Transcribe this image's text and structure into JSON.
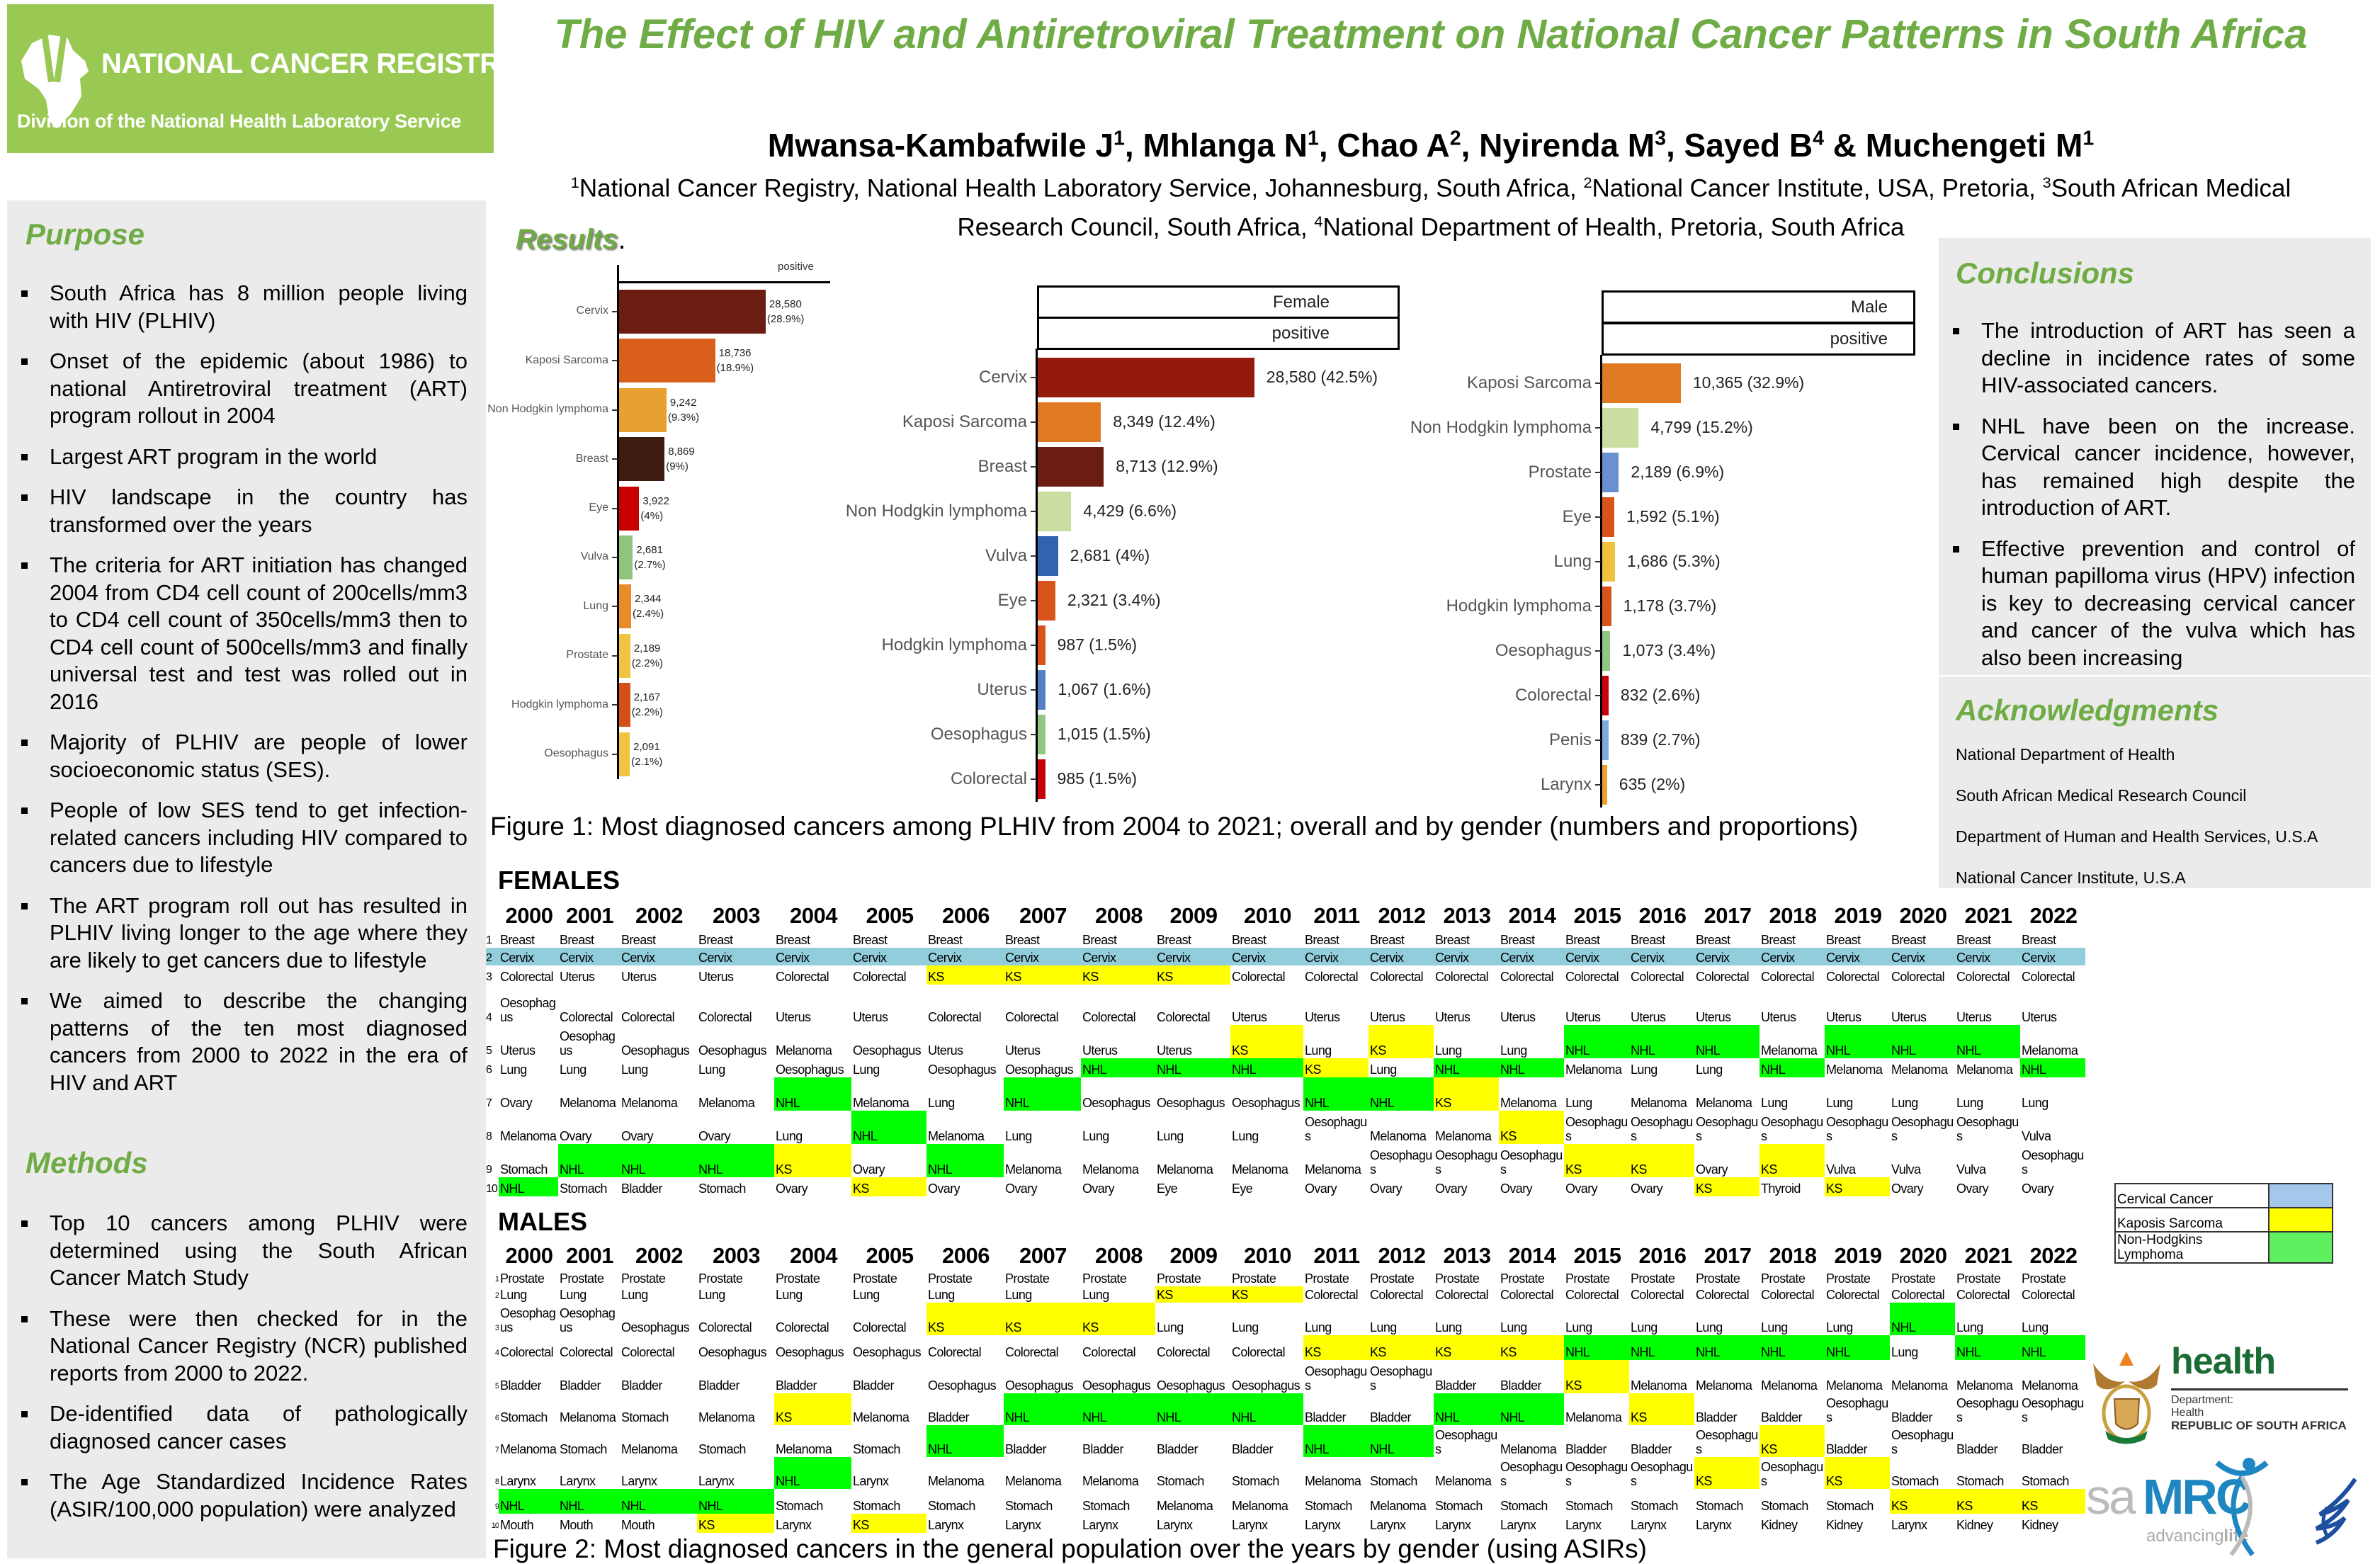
{
  "logo": {
    "name": "NATIONAL CANCER REGISTRY",
    "subtitle": "Division of the National Health Laboratory Service",
    "color": "#99c952"
  },
  "title": "The Effect of HIV and Antiretroviral Treatment on National Cancer Patterns in South Africa",
  "authors": [
    {
      "name": "Mwansa-Kambafwile J",
      "sup": "1",
      "sep": ", "
    },
    {
      "name": "Mhlanga N",
      "sup": "1",
      "sep": ", "
    },
    {
      "name": "Chao A",
      "sup": "2",
      "sep": ", "
    },
    {
      "name": "Nyirenda M",
      "sup": "3",
      "sep": ", "
    },
    {
      "name": "Sayed B",
      "sup": "4",
      "sep": " & "
    },
    {
      "name": "Muchengeti M",
      "sup": "1",
      "sep": ""
    }
  ],
  "affiliations": [
    {
      "sup": "1",
      "text": "National Cancer Registry, National Health Laboratory Service, Johannesburg, South Africa, "
    },
    {
      "sup": "2",
      "text": "National Cancer Institute, USA, Pretoria, "
    },
    {
      "sup": "3",
      "text": "South African Medical Research Council, South Africa, "
    },
    {
      "sup": "4",
      "text": "National Department of Health, Pretoria, South Africa"
    }
  ],
  "purpose": {
    "heading": "Purpose",
    "bullets": [
      "South Africa has 8 million people living with HIV (PLHIV)",
      "Onset of the epidemic (about 1986) to national Antiretroviral treatment (ART) program rollout in 2004",
      "Largest ART program in the world",
      "HIV landscape in the country has transformed over the years",
      "The criteria for ART initiation has changed 2004 from CD4 cell count of 200cells/mm3 to CD4 cell count of 350cells/mm3  then to CD4 cell count of 500cells/mm3 and finally universal test and test was rolled out in 2016",
      "Majority of PLHIV are people of lower socioeconomic status (SES).",
      "People of low SES tend to get infection-related cancers including HIV compared to cancers due to lifestyle",
      "The ART program roll out has resulted in PLHIV living longer to the age where they are likely to get cancers due to lifestyle",
      "We aimed to describe the changing patterns of the ten most diagnosed cancers from 2000 to 2022 in the era of HIV and ART"
    ]
  },
  "methods": {
    "heading": "Methods",
    "bullets": [
      "Top 10 cancers among PLHIV were determined using the South African Cancer Match Study",
      "These were then checked for in the National Cancer Registry (NCR) published reports from 2000 to 2022.",
      "De-identified data of pathologically diagnosed cancer cases",
      "The Age Standardized Incidence Rates (ASIR/100,000 population) were analyzed"
    ]
  },
  "results": {
    "heading": "Results",
    "dot": "."
  },
  "conclusions": {
    "heading": "Conclusions",
    "bullets": [
      "The introduction of ART has seen a decline in incidence rates of some HIV-associated cancers.",
      "NHL have been on the increase. Cervical cancer incidence, however, has remained high despite the introduction of ART.",
      "Effective prevention and control of human papilloma virus (HPV) infection is key to decreasing cervical cancer and cancer of the vulva which has also been increasing"
    ]
  },
  "acknowledgments": {
    "heading": "Acknowledgments",
    "items": [
      "National Department of Health",
      "South African Medical Research Council",
      "Department of Human and Health Services, U.S.A",
      "National Cancer Institute, U.S.A"
    ]
  },
  "figure1_caption": "Figure 1: Most diagnosed cancers among PLHIV from 2004 to 2021; overall and by gender (numbers  and proportions)",
  "figure2_caption": "Figure 2: Most diagnosed cancers in the general population  over the years by gender (using ASIRs)",
  "chart_data": [
    {
      "type": "bar",
      "orientation": "horizontal",
      "strip": [
        "positive"
      ],
      "categories": [
        "Cervix",
        "Kaposi Sarcoma",
        "Non Hodgkin lymphoma",
        "Breast",
        "Eye",
        "Vulva",
        "Lung",
        "Prostate",
        "Hodgkin lymphoma",
        "Oesophagus"
      ],
      "values": [
        28580,
        18736,
        9242,
        8869,
        3922,
        2681,
        2344,
        2189,
        2167,
        2091
      ],
      "counts": [
        "28,580",
        "18,736",
        "9,242",
        "8,869",
        "3,922",
        "2,681",
        "2,344",
        "2,189",
        "2,167",
        "2,091"
      ],
      "percents": [
        "(28.9%)",
        "(18.9%)",
        "(9.3%)",
        "(9%)",
        "(4%)",
        "(2.7%)",
        "(2.4%)",
        "(2.2%)",
        "(2.2%)",
        "(2.1%)"
      ],
      "colors": [
        "#6b1d12",
        "#d95f1a",
        "#e8a030",
        "#3e1a10",
        "#c80000",
        "#90c47e",
        "#e88c2a",
        "#f0c440",
        "#d4501a",
        "#f0c440"
      ]
    },
    {
      "type": "bar",
      "orientation": "horizontal",
      "strip": [
        "Female",
        "positive"
      ],
      "categories": [
        "Cervix",
        "Kaposi Sarcoma",
        "Breast",
        "Non Hodgkin lymphoma",
        "Vulva",
        "Eye",
        "Hodgkin lymphoma",
        "Uterus",
        "Oesophagus",
        "Colorectal"
      ],
      "values": [
        28580,
        8349,
        8713,
        4429,
        2681,
        2321,
        987,
        1067,
        1015,
        985
      ],
      "labels": [
        "28,580 (42.5%)",
        "8,349 (12.4%)",
        "8,713 (12.9%)",
        "4,429 (6.6%)",
        "2,681 (4%)",
        "2,321 (3.4%)",
        "987 (1.5%)",
        "1,067 (1.6%)",
        "1,015 (1.5%)",
        "985 (1.5%)"
      ],
      "colors": [
        "#941b0c",
        "#e07a22",
        "#6a1d10",
        "#c9dea0",
        "#3263b0",
        "#d9541a",
        "#d9541a",
        "#5580c8",
        "#92c683",
        "#c8000a"
      ]
    },
    {
      "type": "bar",
      "orientation": "horizontal",
      "strip": [
        "Male",
        "positive"
      ],
      "categories": [
        "Kaposi Sarcoma",
        "Non Hodgkin lymphoma",
        "Prostate",
        "Eye",
        "Lung",
        "Hodgkin lymphoma",
        "Oesophagus",
        "Colorectal",
        "Penis",
        "Larynx"
      ],
      "values": [
        10365,
        4799,
        2189,
        1592,
        1686,
        1178,
        1073,
        832,
        839,
        635
      ],
      "labels": [
        "10,365 (32.9%)",
        "4,799 (15.2%)",
        "2,189 (6.9%)",
        "1,592 (5.1%)",
        "1,686 (5.3%)",
        "1,178 (3.7%)",
        "1,073 (3.4%)",
        "832 (2.6%)",
        "839 (2.7%)",
        "635 (2%)"
      ],
      "colors": [
        "#e07a22",
        "#c9dea0",
        "#6a90d0",
        "#d9541a",
        "#f0c040",
        "#d9541a",
        "#92c683",
        "#c8000a",
        "#7aaae0",
        "#e8a030"
      ]
    }
  ],
  "highlight_colors": {
    "Cervix": "#92cddc",
    "KS": "#ffff00",
    "NHL": "#00ff00"
  },
  "tables": {
    "females": {
      "label": "FEMALES",
      "years": [
        "2000",
        "2001",
        "2002",
        "2003",
        "2004",
        "2005",
        "2006",
        "2007",
        "2008",
        "2009",
        "2010",
        "2011",
        "2012",
        "2013",
        "2014",
        "2015",
        "2016",
        "2017",
        "2018",
        "2019",
        "2020",
        "2021",
        "2022"
      ],
      "ranks": [
        "1",
        "2",
        "3",
        "4",
        "5",
        "6",
        "7",
        "8",
        "9",
        "10"
      ],
      "rows": [
        [
          "Breast",
          "Breast",
          "Breast",
          "Breast",
          "Breast",
          "Breast",
          "Breast",
          "Breast",
          "Breast",
          "Breast",
          "Breast",
          "Breast",
          "Breast",
          "Breast",
          "Breast",
          "Breast",
          "Breast",
          "Breast",
          "Breast",
          "Breast",
          "Breast",
          "Breast",
          "Breast"
        ],
        [
          "Cervix",
          "Cervix",
          "Cervix",
          "Cervix",
          "Cervix",
          "Cervix",
          "Cervix",
          "Cervix",
          "Cervix",
          "Cervix",
          "Cervix",
          "Cervix",
          "Cervix",
          "Cervix",
          "Cervix",
          "Cervix",
          "Cervix",
          "Cervix",
          "Cervix",
          "Cervix",
          "Cervix",
          "Cervix",
          "Cervix"
        ],
        [
          "Colorectal",
          "Uterus",
          "Uterus",
          "Uterus",
          "Colorectal",
          "Colorectal",
          "KS",
          "KS",
          "KS",
          "KS",
          "Colorectal",
          "Colorectal",
          "Colorectal",
          "Colorectal",
          "Colorectal",
          "Colorectal",
          "Colorectal",
          "Colorectal",
          "Colorectal",
          "Colorectal",
          "Colorectal",
          "Colorectal",
          "Colorectal"
        ],
        [
          "Oesophagus",
          "Colorectal",
          "Colorectal",
          "Colorectal",
          "Uterus",
          "Uterus",
          "Colorectal",
          "Colorectal",
          "Colorectal",
          "Colorectal",
          "Uterus",
          "Uterus",
          "Uterus",
          "Uterus",
          "Uterus",
          "Uterus",
          "Uterus",
          "Uterus",
          "Uterus",
          "Uterus",
          "Uterus",
          "Uterus",
          "Uterus"
        ],
        [
          "Uterus",
          "Oesophagus",
          "Oesophagus",
          "Oesophagus",
          "Melanoma",
          "Oesophagus",
          "Uterus",
          "Uterus",
          "Uterus",
          "Uterus",
          "KS",
          "Lung",
          "KS",
          "Lung",
          "Lung",
          "NHL",
          "NHL",
          "NHL",
          "Melanoma",
          "NHL",
          "NHL",
          "NHL",
          "Melanoma"
        ],
        [
          "Lung",
          "Lung",
          "Lung",
          "Lung",
          "Oesophagus",
          "Lung",
          "Oesophagus",
          "Oesophagus",
          "NHL",
          "NHL",
          "NHL",
          "KS",
          "Lung",
          "NHL",
          "NHL",
          "Melanoma",
          "Lung",
          "Lung",
          "NHL",
          "Melanoma",
          "Melanoma",
          "Melanoma",
          "NHL"
        ],
        [
          "Ovary",
          "Melanoma",
          "Melanoma",
          "Melanoma",
          "NHL",
          "Melanoma",
          "Lung",
          "NHL",
          "Oesophagus",
          "Oesophagus",
          "Oesophagus",
          "NHL",
          "NHL",
          "KS",
          "Melanoma",
          "Lung",
          "Melanoma",
          "Melanoma",
          "Lung",
          "Lung",
          "Lung",
          "Lung",
          "Lung"
        ],
        [
          "Melanoma",
          "Ovary",
          "Ovary",
          "Ovary",
          "Lung",
          "NHL",
          "Melanoma",
          "Lung",
          "Lung",
          "Lung",
          "Lung",
          "Oesophagus",
          "Melanoma",
          "Melanoma",
          "KS",
          "Oesophagus",
          "Oesophagus",
          "Oesophagus",
          "Oesophagus",
          "Oesophagus",
          "Oesophagus",
          "Oesophagus",
          "Vulva"
        ],
        [
          "Stomach",
          "NHL",
          "NHL",
          "NHL",
          "KS",
          "Ovary",
          "NHL",
          "Melanoma",
          "Melanoma",
          "Melanoma",
          "Melanoma",
          "Melanoma",
          "Oesophagus",
          "Oesophagus",
          "Oesophagus",
          "KS",
          "KS",
          "Ovary",
          "KS",
          "Vulva",
          "Vulva",
          "Vulva",
          "Oesophagus"
        ],
        [
          "NHL",
          "Stomach",
          "Bladder",
          "Stomach",
          "Ovary",
          "KS",
          "Ovary",
          "Ovary",
          "Ovary",
          "Eye",
          "Eye",
          "Ovary",
          "Ovary",
          "Ovary",
          "Ovary",
          "Ovary",
          "Ovary",
          "KS",
          "Thyroid",
          "KS",
          "Ovary",
          "Ovary",
          "Ovary"
        ]
      ]
    },
    "males": {
      "label": "MALES",
      "years": [
        "2000",
        "2001",
        "2002",
        "2003",
        "2004",
        "2005",
        "2006",
        "2007",
        "2008",
        "2009",
        "2010",
        "2011",
        "2012",
        "2013",
        "2014",
        "2015",
        "2016",
        "2017",
        "2018",
        "2019",
        "2020",
        "2021",
        "2022"
      ],
      "ranks": [
        "1",
        "2",
        "3",
        "4",
        "5",
        "6",
        "7",
        "8",
        "9",
        "10"
      ],
      "rows": [
        [
          "Prostate",
          "Prostate",
          "Prostate",
          "Prostate",
          "Prostate",
          "Prostate",
          "Prostate",
          "Prostate",
          "Prostate",
          "Prostate",
          "Prostate",
          "Prostate",
          "Prostate",
          "Prostate",
          "Prostate",
          "Prostate",
          "Prostate",
          "Prostate",
          "Prostate",
          "Prostate",
          "Prostate",
          "Prostate",
          "Prostate"
        ],
        [
          "Lung",
          "Lung",
          "Lung",
          "Lung",
          "Lung",
          "Lung",
          "Lung",
          "Lung",
          "Lung",
          "KS",
          "KS",
          "Colorectal",
          "Colorectal",
          "Colorectal",
          "Colorectal",
          "Colorectal",
          "Colorectal",
          "Colorectal",
          "Colorectal",
          "Colorectal",
          "Colorectal",
          "Colorectal",
          "Colorectal"
        ],
        [
          "Oesophagus",
          "Oesophagus",
          "Oesophagus",
          "Colorectal",
          "Colorectal",
          "Colorectal",
          "KS",
          "KS",
          "KS",
          "Lung",
          "Lung",
          "Lung",
          "Lung",
          "Lung",
          "Lung",
          "Lung",
          "Lung",
          "Lung",
          "Lung",
          "Lung",
          "NHL",
          "Lung",
          "Lung"
        ],
        [
          "Colorectal",
          "Colorectal",
          "Colorectal",
          "Oesophagus",
          "Oesophagus",
          "Oesophagus",
          "Colorectal",
          "Colorectal",
          "Colorectal",
          "Colorectal",
          "Colorectal",
          "KS",
          "KS",
          "KS",
          "KS",
          "NHL",
          "NHL",
          "NHL",
          "NHL",
          "NHL",
          "Lung",
          "NHL",
          "NHL"
        ],
        [
          "Bladder",
          "Bladder",
          "Bladder",
          "Bladder",
          "Bladder",
          "Bladder",
          "Oesophagus",
          "Oesophagus",
          "Oesophagus",
          "Oesophagus",
          "Oesophagus",
          "Oesophagus",
          "Oesophagus",
          "Bladder",
          "Bladder",
          "KS",
          "Melanoma",
          "Melanoma",
          "Melanoma",
          "Melanoma",
          "Melanoma",
          "Melanoma",
          "Melanoma"
        ],
        [
          "Stomach",
          "Melanoma",
          "Stomach",
          "Melanoma",
          "KS",
          "Melanoma",
          "Bladder",
          "NHL",
          "NHL",
          "NHL",
          "NHL",
          "Bladder",
          "Bladder",
          "NHL",
          "NHL",
          "Melanoma",
          "KS",
          "Bladder",
          "Baldder",
          "Oesophagus",
          "Bladder",
          "Oesophagus",
          "Oesophagus"
        ],
        [
          "Melanoma",
          "Stomach",
          "Melanoma",
          "Stomach",
          "Melanoma",
          "Stomach",
          "NHL",
          "Bladder",
          "Bladder",
          "Bladder",
          "Bladder",
          "NHL",
          "NHL",
          "Oesophagus",
          "Melanoma",
          "Bladder",
          "Bladder",
          "Oesophagus",
          "KS",
          "Bladder",
          "Oesophagus",
          "Bladder",
          "Bladder"
        ],
        [
          "Larynx",
          "Larynx",
          "Larynx",
          "Larynx",
          "NHL",
          "Larynx",
          "Melanoma",
          "Melanoma",
          "Melanoma",
          "Stomach",
          "Stomach",
          "Melanoma",
          "Stomach",
          "Melanoma",
          "Oesophagus",
          "Oesophagus",
          "Oesophagus",
          "KS",
          "Oesophagus",
          "KS",
          "Stomach",
          "Stomach",
          "Stomach"
        ],
        [
          "NHL",
          "NHL",
          "NHL",
          "NHL",
          "Stomach",
          "Stomach",
          "Stomach",
          "Stomach",
          "Stomach",
          "Melanoma",
          "Melanoma",
          "Stomach",
          "Melanoma",
          "Stomach",
          "Stomach",
          "Stomach",
          "Stomach",
          "Stomach",
          "Stomach",
          "Stomach",
          "KS",
          "KS",
          "KS"
        ],
        [
          "Mouth",
          "Mouth",
          "Mouth",
          "KS",
          "Larynx",
          "KS",
          "Larynx",
          "Larynx",
          "Larynx",
          "Larynx",
          "Larynx",
          "Larynx",
          "Larynx",
          "Larynx",
          "Larynx",
          "Larynx",
          "Larynx",
          "Larynx",
          "Kidney",
          "Kidney",
          "Larynx",
          "Kidney",
          "Kidney"
        ]
      ]
    }
  },
  "legend": [
    {
      "label": "Cervical Cancer",
      "color": "#a4c8ec"
    },
    {
      "label": "Kaposis Sarcoma",
      "color": "#ffff00"
    },
    {
      "label": "Non-Hodgkins Lymphoma",
      "color": "#5ff05f"
    }
  ],
  "logos": {
    "health": {
      "word": "health",
      "line1": "Department:",
      "line2": "Health",
      "line3": "REPUBLIC OF SOUTH AFRICA"
    },
    "samrc": {
      "sa": "sa",
      "mrc": "MRC",
      "tag1": "advancing",
      "tag2": "life"
    },
    "hhs": {
      "ring": "DEPARTMENT OF HEALTH & HUMAN SERVICES · USA"
    }
  }
}
